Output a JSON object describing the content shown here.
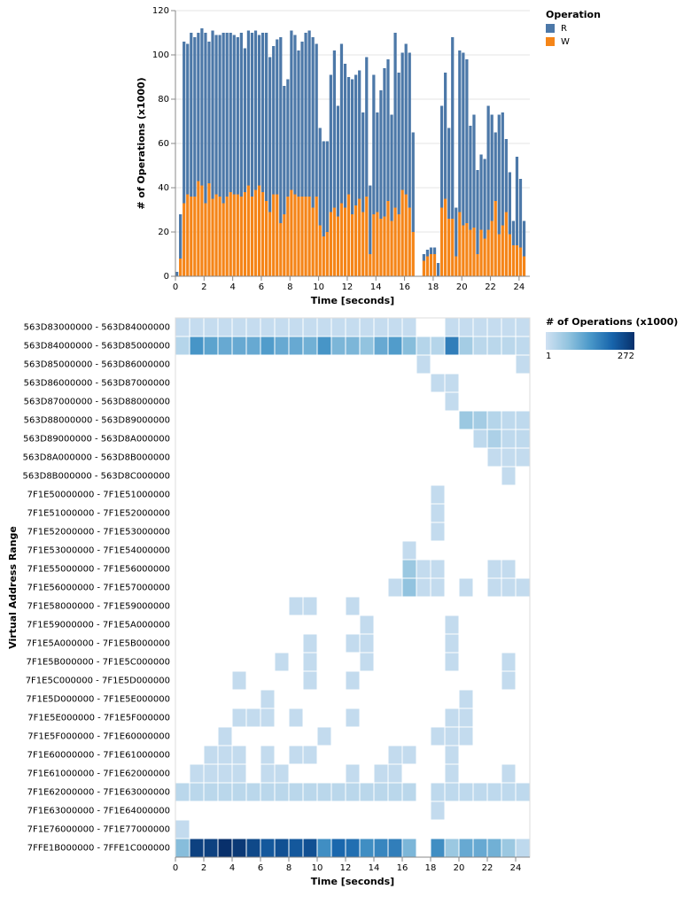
{
  "chart_data": [
    {
      "type": "stacked_bar",
      "x_label": "Time [seconds]",
      "y_label": "# of Operations (x1000)",
      "legend_title": "Operation",
      "x": [
        0,
        0.25,
        0.5,
        0.75,
        1,
        1.25,
        1.5,
        1.75,
        2,
        2.25,
        2.5,
        2.75,
        3,
        3.25,
        3.5,
        3.75,
        4,
        4.25,
        4.5,
        4.75,
        5,
        5.25,
        5.5,
        5.75,
        6,
        6.25,
        6.5,
        6.75,
        7,
        7.25,
        7.5,
        7.75,
        8,
        8.25,
        8.5,
        8.75,
        9,
        9.25,
        9.5,
        9.75,
        10,
        10.25,
        10.5,
        10.75,
        11,
        11.25,
        11.5,
        11.75,
        12,
        12.25,
        12.5,
        12.75,
        13,
        13.25,
        13.5,
        13.75,
        14,
        14.25,
        14.5,
        14.75,
        15,
        15.25,
        15.5,
        15.75,
        16,
        16.25,
        16.5,
        17.25,
        17.5,
        17.75,
        18,
        18.25,
        18.5,
        18.75,
        19,
        19.25,
        19.5,
        19.75,
        20,
        20.25,
        20.5,
        20.75,
        21,
        21.25,
        21.5,
        21.75,
        22,
        22.25,
        22.5,
        22.75,
        23,
        23.25,
        23.5,
        23.75,
        24,
        24.25
      ],
      "series": [
        {
          "name": "W",
          "color": "#f58518",
          "values": [
            0,
            8,
            33,
            37,
            36,
            36,
            43,
            41,
            33,
            42,
            35,
            37,
            36,
            33,
            36,
            38,
            37,
            37,
            36,
            38,
            41,
            36,
            39,
            41,
            38,
            34,
            29,
            37,
            37,
            24,
            28,
            36,
            39,
            37,
            36,
            36,
            36,
            36,
            31,
            36,
            23,
            18,
            20,
            29,
            31,
            27,
            33,
            31,
            37,
            28,
            32,
            35,
            29,
            36,
            10,
            28,
            29,
            26,
            27,
            34,
            25,
            31,
            28,
            39,
            37,
            31,
            20,
            7,
            9,
            10,
            10,
            0,
            31,
            35,
            26,
            26,
            9,
            29,
            23,
            24,
            21,
            22,
            10,
            21,
            17,
            21,
            25,
            34,
            19,
            23,
            29,
            19,
            14,
            14,
            13,
            9
          ]
        },
        {
          "name": "R",
          "color": "#4c78a8",
          "values": [
            2,
            20,
            73,
            68,
            74,
            72,
            67,
            71,
            77,
            64,
            76,
            72,
            73,
            77,
            74,
            72,
            72,
            71,
            74,
            65,
            70,
            74,
            72,
            68,
            72,
            76,
            70,
            67,
            70,
            84,
            58,
            53,
            72,
            72,
            66,
            70,
            74,
            75,
            77,
            69,
            44,
            43,
            41,
            62,
            71,
            50,
            72,
            65,
            53,
            61,
            59,
            58,
            45,
            63,
            31,
            63,
            45,
            58,
            67,
            64,
            48,
            79,
            64,
            62,
            68,
            70,
            45,
            3,
            3,
            3,
            3,
            6,
            46,
            57,
            41,
            82,
            22,
            73,
            78,
            74,
            47,
            51,
            38,
            34,
            36,
            56,
            48,
            31,
            54,
            51,
            33,
            28,
            11,
            40,
            31,
            16
          ]
        }
      ],
      "xlim": [
        0,
        24.75
      ],
      "xticks": [
        0,
        2,
        4,
        6,
        8,
        10,
        12,
        14,
        16,
        18,
        20,
        22,
        24
      ],
      "ylim": [
        0,
        120
      ],
      "yticks": [
        0,
        20,
        40,
        60,
        80,
        100,
        120
      ],
      "grid": true
    },
    {
      "type": "heatmap",
      "x_label": "Time [seconds]",
      "y_label": "Virtual Address Range",
      "legend_title": "# of Operations (x1000)",
      "clim": [
        1,
        272
      ],
      "colors": [
        "#cfe1f2",
        "#93c4df",
        "#4a98c9",
        "#1764ab",
        "#08306b"
      ],
      "xlim": [
        0,
        25
      ],
      "xticks": [
        0,
        2,
        4,
        6,
        8,
        10,
        12,
        14,
        16,
        18,
        20,
        22,
        24
      ],
      "columns": [
        0,
        1,
        2,
        3,
        4,
        5,
        6,
        7,
        8,
        9,
        10,
        11,
        12,
        13,
        14,
        15,
        16,
        17,
        18,
        19,
        20,
        21,
        22,
        23,
        24
      ],
      "rows": [
        "563D83000000 - 563D84000000",
        "563D84000000 - 563D85000000",
        "563D85000000 - 563D86000000",
        "563D86000000 - 563D87000000",
        "563D87000000 - 563D88000000",
        "563D88000000 - 563D89000000",
        "563D89000000 - 563D8A000000",
        "563D8A000000 - 563D8B000000",
        "563D8B000000 - 563D8C000000",
        "7F1E50000000 - 7F1E51000000",
        "7F1E51000000 - 7F1E52000000",
        "7F1E52000000 - 7F1E53000000",
        "7F1E53000000 - 7F1E54000000",
        "7F1E55000000 - 7F1E56000000",
        "7F1E56000000 - 7F1E57000000",
        "7F1E58000000 - 7F1E59000000",
        "7F1E59000000 - 7F1E5A000000",
        "7F1E5A000000 - 7F1E5B000000",
        "7F1E5B000000 - 7F1E5C000000",
        "7F1E5C000000 - 7F1E5D000000",
        "7F1E5D000000 - 7F1E5E000000",
        "7F1E5E000000 - 7F1E5F000000",
        "7F1E5F000000 - 7F1E60000000",
        "7F1E60000000 - 7F1E61000000",
        "7F1E61000000 - 7F1E62000000",
        "7F1E62000000 - 7F1E63000000",
        "7F1E63000000 - 7F1E64000000",
        "7F1E76000000 - 7F1E77000000",
        "7FFE1B000000 - 7FFE1C000000"
      ],
      "values": [
        [
          12,
          12,
          12,
          12,
          12,
          12,
          12,
          12,
          12,
          12,
          12,
          12,
          12,
          12,
          12,
          12,
          12,
          null,
          null,
          12,
          12,
          12,
          12,
          12,
          12
        ],
        [
          30,
          140,
          120,
          110,
          110,
          110,
          130,
          110,
          110,
          100,
          140,
          90,
          90,
          70,
          110,
          130,
          80,
          30,
          30,
          170,
          50,
          25,
          25,
          25,
          20
        ],
        [
          null,
          null,
          null,
          null,
          null,
          null,
          null,
          null,
          null,
          null,
          null,
          null,
          null,
          null,
          null,
          null,
          null,
          15,
          null,
          null,
          null,
          null,
          null,
          null,
          15
        ],
        [
          null,
          null,
          null,
          null,
          null,
          null,
          null,
          null,
          null,
          null,
          null,
          null,
          null,
          null,
          null,
          null,
          null,
          null,
          15,
          15,
          null,
          null,
          null,
          null,
          null
        ],
        [
          null,
          null,
          null,
          null,
          null,
          null,
          null,
          null,
          null,
          null,
          null,
          null,
          null,
          null,
          null,
          null,
          null,
          null,
          null,
          15,
          null,
          null,
          null,
          null,
          null
        ],
        [
          null,
          null,
          null,
          null,
          null,
          null,
          null,
          null,
          null,
          null,
          null,
          null,
          null,
          null,
          null,
          null,
          null,
          null,
          null,
          null,
          60,
          50,
          30,
          20,
          20
        ],
        [
          null,
          null,
          null,
          null,
          null,
          null,
          null,
          null,
          null,
          null,
          null,
          null,
          null,
          null,
          null,
          null,
          null,
          null,
          null,
          null,
          null,
          20,
          40,
          20,
          20
        ],
        [
          null,
          null,
          null,
          null,
          null,
          null,
          null,
          null,
          null,
          null,
          null,
          null,
          null,
          null,
          null,
          null,
          null,
          null,
          null,
          null,
          null,
          null,
          15,
          15,
          15
        ],
        [
          null,
          null,
          null,
          null,
          null,
          null,
          null,
          null,
          null,
          null,
          null,
          null,
          null,
          null,
          null,
          null,
          null,
          null,
          null,
          null,
          null,
          null,
          null,
          15,
          null
        ],
        [
          null,
          null,
          null,
          null,
          null,
          null,
          null,
          null,
          null,
          null,
          null,
          null,
          null,
          null,
          null,
          null,
          null,
          null,
          15,
          null,
          null,
          null,
          null,
          null,
          null
        ],
        [
          null,
          null,
          null,
          null,
          null,
          null,
          null,
          null,
          null,
          null,
          null,
          null,
          null,
          null,
          null,
          null,
          null,
          null,
          15,
          null,
          null,
          null,
          null,
          null,
          null
        ],
        [
          null,
          null,
          null,
          null,
          null,
          null,
          null,
          null,
          null,
          null,
          null,
          null,
          null,
          null,
          null,
          null,
          null,
          null,
          15,
          null,
          null,
          null,
          null,
          null,
          null
        ],
        [
          null,
          null,
          null,
          null,
          null,
          null,
          null,
          null,
          null,
          null,
          null,
          null,
          null,
          null,
          null,
          null,
          15,
          null,
          null,
          null,
          null,
          null,
          null,
          null,
          null
        ],
        [
          null,
          null,
          null,
          null,
          null,
          null,
          null,
          null,
          null,
          null,
          null,
          null,
          null,
          null,
          null,
          null,
          60,
          15,
          15,
          null,
          null,
          null,
          15,
          15,
          null
        ],
        [
          null,
          null,
          null,
          null,
          null,
          null,
          null,
          null,
          null,
          null,
          null,
          null,
          null,
          null,
          null,
          15,
          70,
          15,
          15,
          null,
          15,
          null,
          15,
          15,
          15
        ],
        [
          null,
          null,
          null,
          null,
          null,
          null,
          null,
          null,
          15,
          15,
          null,
          null,
          15,
          null,
          null,
          null,
          null,
          null,
          null,
          null,
          null,
          null,
          null,
          null,
          null
        ],
        [
          null,
          null,
          null,
          null,
          null,
          null,
          null,
          null,
          null,
          null,
          null,
          null,
          null,
          15,
          null,
          null,
          null,
          null,
          null,
          15,
          null,
          null,
          null,
          null,
          null
        ],
        [
          null,
          null,
          null,
          null,
          null,
          null,
          null,
          null,
          null,
          15,
          null,
          null,
          15,
          15,
          null,
          null,
          null,
          null,
          null,
          15,
          null,
          null,
          null,
          null,
          null
        ],
        [
          null,
          null,
          null,
          null,
          null,
          null,
          null,
          15,
          null,
          15,
          null,
          null,
          null,
          15,
          null,
          null,
          null,
          null,
          null,
          15,
          null,
          null,
          null,
          15,
          null
        ],
        [
          null,
          null,
          null,
          null,
          15,
          null,
          null,
          null,
          null,
          15,
          null,
          null,
          15,
          null,
          null,
          null,
          null,
          null,
          null,
          null,
          null,
          null,
          null,
          15,
          null
        ],
        [
          null,
          null,
          null,
          null,
          null,
          null,
          15,
          null,
          null,
          null,
          null,
          null,
          null,
          null,
          null,
          null,
          null,
          null,
          null,
          null,
          15,
          null,
          null,
          null,
          null
        ],
        [
          null,
          null,
          null,
          null,
          15,
          15,
          15,
          null,
          15,
          null,
          null,
          null,
          15,
          null,
          null,
          null,
          null,
          null,
          null,
          15,
          15,
          null,
          null,
          null,
          null
        ],
        [
          null,
          null,
          null,
          15,
          null,
          null,
          null,
          null,
          null,
          null,
          15,
          null,
          null,
          null,
          null,
          null,
          null,
          null,
          15,
          15,
          15,
          null,
          null,
          null,
          null
        ],
        [
          null,
          null,
          15,
          15,
          15,
          null,
          15,
          null,
          15,
          15,
          null,
          null,
          null,
          null,
          null,
          15,
          15,
          null,
          null,
          15,
          null,
          null,
          null,
          null,
          null
        ],
        [
          null,
          15,
          15,
          15,
          15,
          null,
          15,
          15,
          null,
          null,
          null,
          null,
          15,
          null,
          15,
          15,
          null,
          null,
          null,
          15,
          null,
          null,
          null,
          15,
          null
        ],
        [
          25,
          25,
          25,
          25,
          25,
          25,
          25,
          25,
          25,
          25,
          25,
          25,
          25,
          25,
          25,
          25,
          25,
          null,
          20,
          20,
          20,
          20,
          20,
          20,
          20
        ],
        [
          null,
          null,
          null,
          null,
          null,
          null,
          null,
          null,
          null,
          null,
          null,
          null,
          null,
          null,
          null,
          null,
          null,
          null,
          15,
          null,
          null,
          null,
          null,
          null,
          null
        ],
        [
          15,
          null,
          null,
          null,
          null,
          null,
          null,
          null,
          null,
          null,
          null,
          null,
          null,
          null,
          null,
          null,
          null,
          null,
          null,
          null,
          null,
          null,
          null,
          null,
          null
        ],
        [
          80,
          250,
          250,
          272,
          260,
          240,
          220,
          230,
          220,
          230,
          150,
          200,
          190,
          150,
          160,
          170,
          90,
          null,
          150,
          60,
          110,
          110,
          100,
          60,
          20
        ]
      ]
    }
  ]
}
